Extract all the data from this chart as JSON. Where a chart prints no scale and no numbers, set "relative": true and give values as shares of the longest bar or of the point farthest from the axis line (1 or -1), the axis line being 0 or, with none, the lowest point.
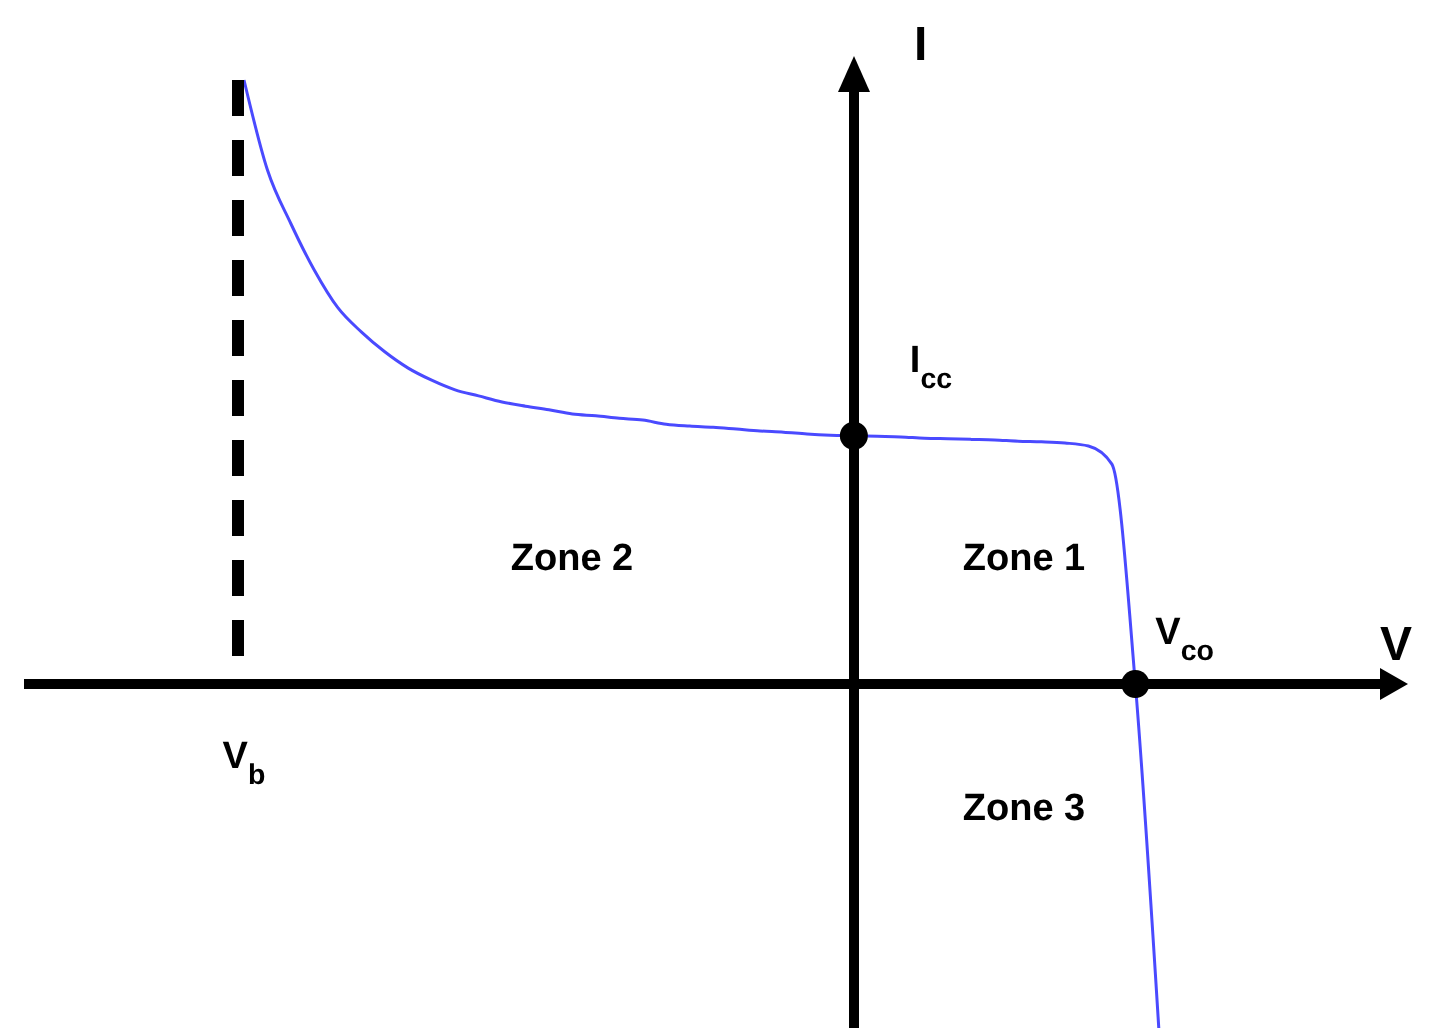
{
  "chart_data": {
    "type": "line",
    "relative": true,
    "xlabel": "V",
    "ylabel": "I",
    "line_style": "solid",
    "categories": [
      null,
      null,
      null,
      null,
      null,
      null,
      null,
      null,
      null,
      null,
      null,
      null,
      null,
      null,
      null,
      null,
      null,
      null,
      null,
      null,
      null,
      null,
      null,
      null,
      null,
      null,
      null,
      null,
      null,
      null,
      null,
      null,
      null,
      null,
      null,
      null,
      null,
      null,
      null,
      null
    ],
    "series": [
      {
        "color": "#4a4aff",
        "values": [
          1,
          0.851,
          0.762,
          0.685,
          0.623,
          0.583,
          0.55,
          0.523,
          0.503,
          0.487,
          0.477,
          0.467,
          0.46,
          0.454,
          0.447,
          0.444,
          0.44,
          0.437,
          0.43,
          0.427,
          0.425,
          0.422,
          0.419,
          0.417,
          0.414,
          0.412,
          0.411,
          0.41,
          0.409,
          0.407,
          0.406,
          0.405,
          0.404,
          0.402,
          0.401,
          0.399,
          0.394,
          0.364,
          0,
          -0.57
        ]
      }
    ],
    "annotations": [
      {
        "text": "I$_{cc}$",
        "y": 0.411
      },
      "V$_{co}$",
      "V$_{b}$",
      "Zone 1",
      "Zone 2",
      "Zone 3"
    ]
  }
}
